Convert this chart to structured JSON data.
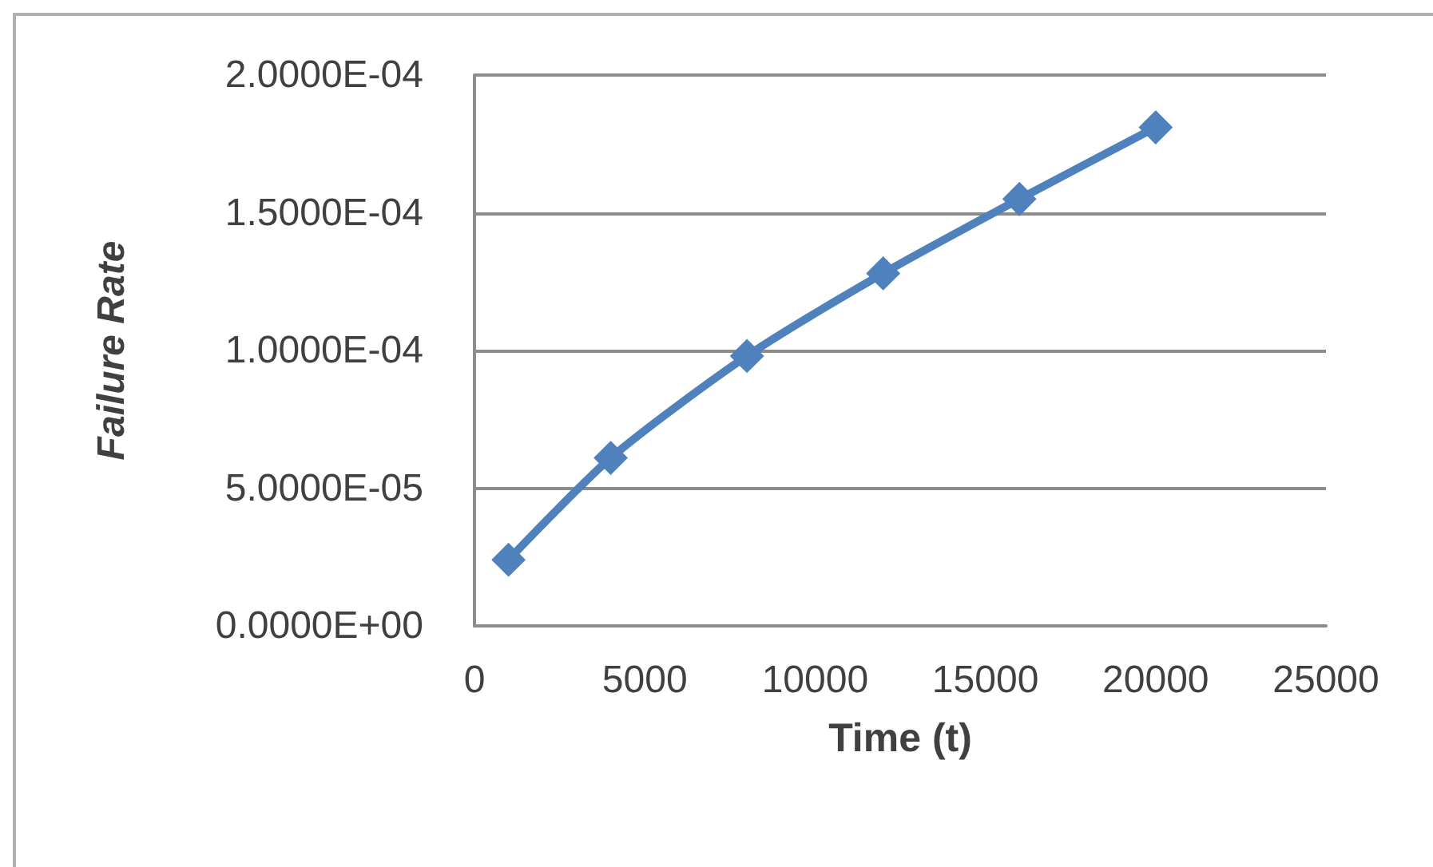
{
  "chart_data": {
    "type": "line",
    "xlabel": "Time (t)",
    "ylabel": "Failure Rate",
    "x": [
      1000,
      4000,
      8000,
      12000,
      16000,
      20000
    ],
    "values": [
      2.4e-05,
      6.1e-05,
      9.8e-05,
      0.000128,
      0.000155,
      0.000181
    ],
    "color": "#4f81bd",
    "xlim": [
      0,
      25000
    ],
    "xticks": [
      0,
      5000,
      10000,
      15000,
      20000,
      25000
    ],
    "ylim": [
      0,
      0.0002
    ],
    "yticks": [
      {
        "value": 0,
        "label": "0.0000E+00"
      },
      {
        "value": 5e-05,
        "label": "5.0000E-05"
      },
      {
        "value": 0.0001,
        "label": "1.0000E-04"
      },
      {
        "value": 0.00015,
        "label": "1.5000E-04"
      },
      {
        "value": 0.0002,
        "label": "2.0000E-04"
      }
    ],
    "grid": "y",
    "marker": "diamond",
    "line_style": "solid"
  }
}
